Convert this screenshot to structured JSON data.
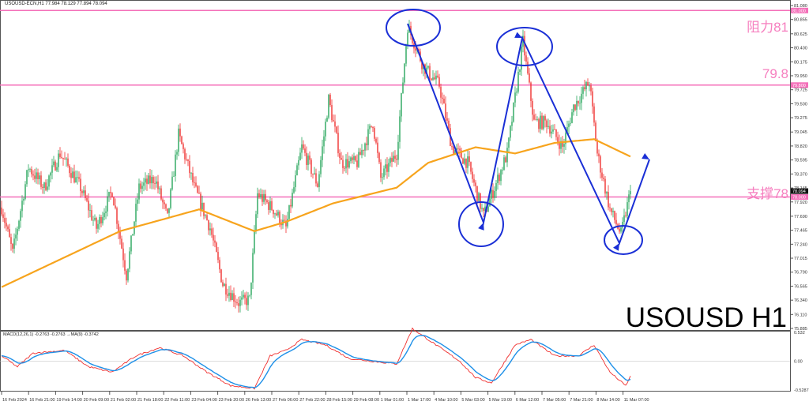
{
  "header": {
    "symbol": "USOUSD-ECN,H1",
    "ohlc": "77.984 78.129 77.894 78.094"
  },
  "macd_label": "MACD(12,26,1) -0.2763 -0.2763 →MA(9) -0.3742",
  "annotations": {
    "resistance": "阻力81",
    "mid": "79.8",
    "support": "支撑78",
    "title": "USOUSD H1"
  },
  "colors": {
    "bull": "#26a65b",
    "bear": "#f0302f",
    "ma": "#f7a41d",
    "levels": "#f46fb9",
    "drawing": "#1a2fd6",
    "macd": "#f0302f",
    "signal": "#1e90e8"
  },
  "chart_data": {
    "type": "candlestick",
    "ylim": [
      75.885,
      81.08
    ],
    "price_ticks": [
      "81.080",
      "80.855",
      "80.625",
      "80.400",
      "80.175",
      "79.950",
      "79.725",
      "79.500",
      "79.275",
      "79.045",
      "78.820",
      "78.595",
      "78.370",
      "78.145",
      "77.920",
      "77.690",
      "77.465",
      "77.240",
      "77.015",
      "76.790",
      "76.565",
      "76.340",
      "76.110",
      "75.885"
    ],
    "level_tags": [
      {
        "price": 81.0,
        "label": "81.000"
      },
      {
        "price": 79.8,
        "label": "79.800"
      },
      {
        "price": 78.0,
        "label": "78.000"
      }
    ],
    "current_price": {
      "price": 78.094,
      "label": "78.094"
    },
    "time_ticks": [
      "16 Feb 2024",
      "16 Feb 21:00",
      "19 Feb 14:00",
      "20 Feb 09:00",
      "21 Feb 02:00",
      "21 Feb 18:00",
      "22 Feb 11:00",
      "23 Feb 04:00",
      "23 Feb 20:00",
      "26 Feb 13:00",
      "27 Feb 06:00",
      "27 Feb 22:00",
      "28 Feb 15:00",
      "29 Feb 08:00",
      "1 Mar 01:00",
      "1 Mar 17:00",
      "4 Mar 10:00",
      "5 Mar 03:00",
      "5 Mar 19:00",
      "6 Mar 12:00",
      "7 Mar 05:00",
      "7 Mar 21:00",
      "8 Mar 14:00",
      "11 Mar 07:00"
    ],
    "close_path": [
      [
        0,
        77.83
      ],
      [
        7,
        77.1
      ],
      [
        17,
        78.48
      ],
      [
        27,
        78.15
      ],
      [
        37,
        78.7
      ],
      [
        50,
        78.15
      ],
      [
        60,
        77.5
      ],
      [
        70,
        78.1
      ],
      [
        79,
        76.74
      ],
      [
        87,
        78.15
      ],
      [
        97,
        78.3
      ],
      [
        105,
        77.65
      ],
      [
        112,
        79.0
      ],
      [
        122,
        78.15
      ],
      [
        132,
        77.5
      ],
      [
        140,
        76.6
      ],
      [
        150,
        76.3
      ],
      [
        157,
        76.35
      ],
      [
        162,
        78.05
      ],
      [
        172,
        77.8
      ],
      [
        180,
        77.5
      ],
      [
        190,
        78.8
      ],
      [
        200,
        78.2
      ],
      [
        207,
        79.57
      ],
      [
        215,
        78.55
      ],
      [
        225,
        78.55
      ],
      [
        235,
        79.2
      ],
      [
        240,
        78.3
      ],
      [
        250,
        78.7
      ],
      [
        257,
        80.75
      ],
      [
        267,
        80.1
      ],
      [
        277,
        79.8
      ],
      [
        285,
        78.8
      ],
      [
        295,
        78.55
      ],
      [
        305,
        77.7
      ],
      [
        312,
        78.15
      ],
      [
        320,
        78.7
      ],
      [
        330,
        80.5
      ],
      [
        337,
        79.2
      ],
      [
        345,
        79.2
      ],
      [
        355,
        78.8
      ],
      [
        362,
        79.45
      ],
      [
        372,
        79.85
      ],
      [
        377,
        78.7
      ],
      [
        385,
        77.8
      ],
      [
        392,
        77.4
      ],
      [
        398,
        78.094
      ]
    ],
    "ma_path": [
      [
        0,
        76.55
      ],
      [
        75,
        77.45
      ],
      [
        125,
        77.8
      ],
      [
        160,
        77.45
      ],
      [
        180,
        77.6
      ],
      [
        210,
        77.9
      ],
      [
        250,
        78.15
      ],
      [
        270,
        78.55
      ],
      [
        300,
        78.8
      ],
      [
        325,
        78.7
      ],
      [
        350,
        78.87
      ],
      [
        375,
        78.93
      ],
      [
        398,
        78.65
      ]
    ],
    "macd": {
      "ylim": [
        -0.5287,
        0.532
      ],
      "ticks": [
        "0.532",
        "0.00",
        "-0.5287"
      ],
      "values": [
        [
          0,
          0.1
        ],
        [
          10,
          -0.1
        ],
        [
          20,
          0.15
        ],
        [
          40,
          0.2
        ],
        [
          55,
          -0.1
        ],
        [
          70,
          -0.2
        ],
        [
          85,
          0.1
        ],
        [
          100,
          0.25
        ],
        [
          115,
          0.1
        ],
        [
          130,
          -0.2
        ],
        [
          145,
          -0.45
        ],
        [
          160,
          -0.5
        ],
        [
          170,
          0.1
        ],
        [
          180,
          0.2
        ],
        [
          190,
          0.4
        ],
        [
          205,
          0.3
        ],
        [
          220,
          0.05
        ],
        [
          235,
          0
        ],
        [
          250,
          -0.05
        ],
        [
          260,
          0.6
        ],
        [
          275,
          0.3
        ],
        [
          290,
          0
        ],
        [
          300,
          -0.3
        ],
        [
          310,
          -0.4
        ],
        [
          325,
          0.3
        ],
        [
          335,
          0.4
        ],
        [
          350,
          0.1
        ],
        [
          365,
          0.1
        ],
        [
          375,
          0.3
        ],
        [
          385,
          -0.2
        ],
        [
          395,
          -0.45
        ],
        [
          398,
          -0.28
        ]
      ]
    }
  }
}
